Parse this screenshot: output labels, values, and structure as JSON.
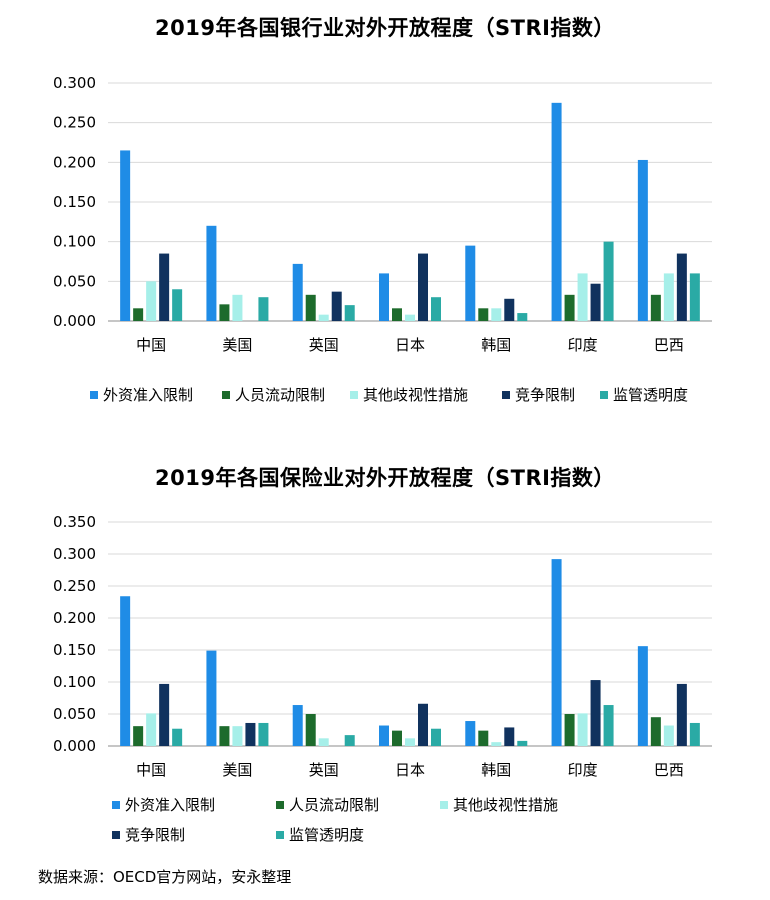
{
  "chart_data": [
    {
      "type": "bar",
      "title": "2019年各国银行业对外开放程度（STRI指数）",
      "categories": [
        "中国",
        "美国",
        "英国",
        "日本",
        "韩国",
        "印度",
        "巴西"
      ],
      "ylim": [
        0,
        0.3
      ],
      "yticks": [
        "0.000",
        "0.050",
        "0.100",
        "0.150",
        "0.200",
        "0.250",
        "0.300"
      ],
      "ytick_values": [
        0,
        0.05,
        0.1,
        0.15,
        0.2,
        0.25,
        0.3
      ],
      "grid": true,
      "legend_position": "bottom",
      "series": [
        {
          "name": "外资准入限制",
          "color": "#1f8ce6",
          "values": [
            0.215,
            0.12,
            0.072,
            0.06,
            0.095,
            0.275,
            0.203
          ]
        },
        {
          "name": "人员流动限制",
          "color": "#1d6b2c",
          "values": [
            0.016,
            0.021,
            0.033,
            0.016,
            0.016,
            0.033,
            0.033
          ]
        },
        {
          "name": "其他歧视性措施",
          "color": "#a6efe9",
          "values": [
            0.05,
            0.033,
            0.008,
            0.008,
            0.016,
            0.06,
            0.06
          ]
        },
        {
          "name": "竞争限制",
          "color": "#10325e",
          "values": [
            0.085,
            0.0,
            0.037,
            0.085,
            0.028,
            0.047,
            0.085
          ]
        },
        {
          "name": "监管透明度",
          "color": "#2aaaa5",
          "values": [
            0.04,
            0.03,
            0.02,
            0.03,
            0.01,
            0.1,
            0.06
          ]
        }
      ]
    },
    {
      "type": "bar",
      "title": "2019年各国保险业对外开放程度（STRI指数）",
      "categories": [
        "中国",
        "美国",
        "英国",
        "日本",
        "韩国",
        "印度",
        "巴西"
      ],
      "ylim": [
        0,
        0.35
      ],
      "yticks": [
        "0.000",
        "0.050",
        "0.100",
        "0.150",
        "0.200",
        "0.250",
        "0.300",
        "0.350"
      ],
      "ytick_values": [
        0,
        0.05,
        0.1,
        0.15,
        0.2,
        0.25,
        0.3,
        0.35
      ],
      "grid": true,
      "legend_position": "bottom",
      "series": [
        {
          "name": "外资准入限制",
          "color": "#1f8ce6",
          "values": [
            0.234,
            0.149,
            0.064,
            0.032,
            0.039,
            0.292,
            0.156
          ]
        },
        {
          "name": "人员流动限制",
          "color": "#1d6b2c",
          "values": [
            0.031,
            0.031,
            0.05,
            0.024,
            0.024,
            0.05,
            0.045
          ]
        },
        {
          "name": "其他歧视性措施",
          "color": "#a6efe9",
          "values": [
            0.051,
            0.031,
            0.012,
            0.012,
            0.006,
            0.051,
            0.032
          ]
        },
        {
          "name": "竞争限制",
          "color": "#10325e",
          "values": [
            0.097,
            0.036,
            0.0,
            0.066,
            0.029,
            0.103,
            0.097
          ]
        },
        {
          "name": "监管透明度",
          "color": "#2aaaa5",
          "values": [
            0.027,
            0.036,
            0.017,
            0.027,
            0.008,
            0.064,
            0.036
          ]
        }
      ]
    }
  ],
  "source": "数据来源：OECD官方网站，安永整理"
}
